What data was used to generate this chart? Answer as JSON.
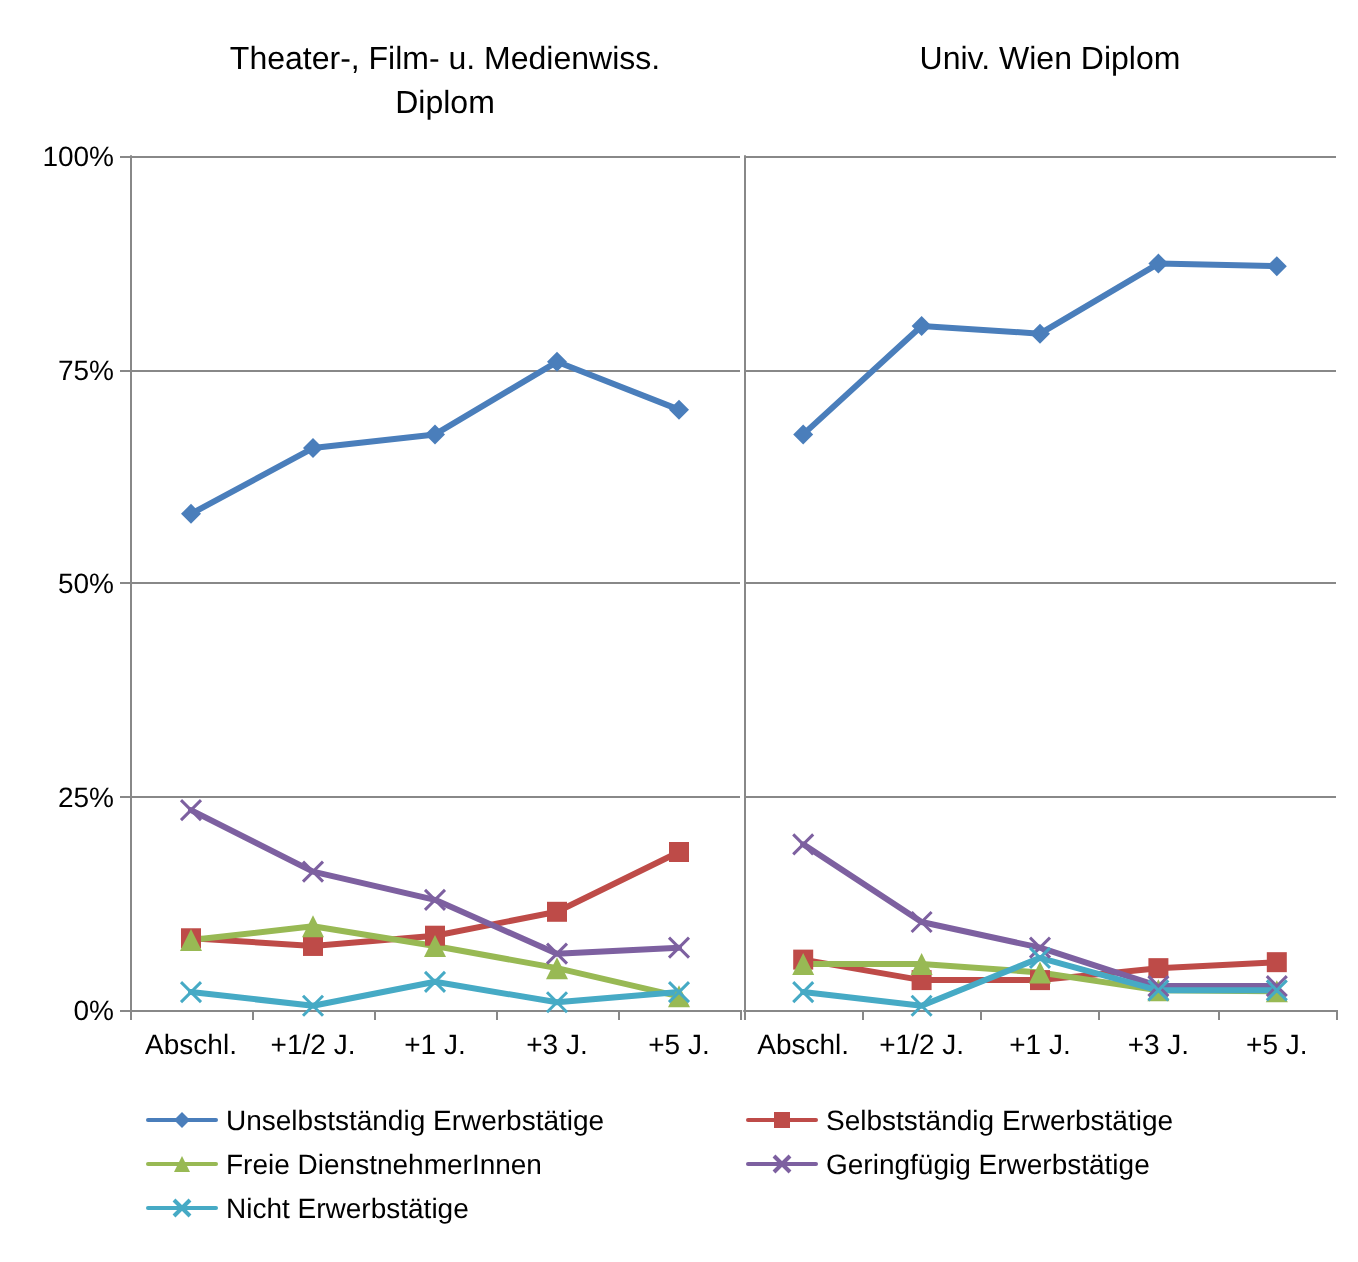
{
  "chart_data": [
    {
      "type": "line",
      "title": "Theater-, Film- u. Medienwiss.\nDiplom",
      "categories": [
        "Abschl.",
        "+1/2 J.",
        "+1 J.",
        "+3 J.",
        "+5 J."
      ],
      "series": [
        {
          "name": "Unselbstständig Erwerbstätige",
          "color": "#4a7ebb",
          "marker": "diamond",
          "values": [
            58.1,
            65.8,
            67.4,
            75.9,
            70.3
          ]
        },
        {
          "name": "Selbstständig Erwerbstätige",
          "color": "#be4b48",
          "marker": "square",
          "values": [
            8.4,
            7.5,
            8.7,
            11.5,
            18.5
          ]
        },
        {
          "name": "Freie DienstnehmerInnen",
          "color": "#98b954",
          "marker": "triangle",
          "values": [
            8.2,
            9.8,
            7.5,
            4.9,
            1.6
          ]
        },
        {
          "name": "Geringfügig Erwerbstätige",
          "color": "#7d60a0",
          "marker": "cross",
          "values": [
            23.4,
            16.2,
            12.9,
            6.6,
            7.3
          ]
        },
        {
          "name": "Nicht Erwerbstätige",
          "color": "#46aac5",
          "marker": "cross",
          "values": [
            2.1,
            0.5,
            3.3,
            0.9,
            2.1
          ]
        }
      ],
      "ylim": [
        0,
        100
      ],
      "yticks": [
        {
          "value": 0,
          "label": "0%"
        },
        {
          "value": 25,
          "label": "25%"
        },
        {
          "value": 50,
          "label": "50%"
        },
        {
          "value": 75,
          "label": "75%"
        },
        {
          "value": 100,
          "label": "100%"
        }
      ],
      "grid": "y",
      "legend": "bottom"
    },
    {
      "type": "line",
      "title": "Univ. Wien Diplom",
      "categories": [
        "Abschl.",
        "+1/2 J.",
        "+1 J.",
        "+3 J.",
        "+5 J."
      ],
      "series": [
        {
          "color": "#4a7ebb",
          "marker": "diamond",
          "values": [
            67.4,
            80.1,
            79.2,
            87.4,
            87.1
          ]
        },
        {
          "color": "#be4b48",
          "marker": "square",
          "values": [
            5.9,
            3.5,
            3.5,
            4.9,
            5.6
          ]
        },
        {
          "color": "#98b954",
          "marker": "triangle",
          "values": [
            5.4,
            5.4,
            4.4,
            2.3,
            2.2
          ]
        },
        {
          "color": "#7d60a0",
          "marker": "cross",
          "values": [
            19.4,
            10.3,
            7.3,
            2.8,
            2.8
          ]
        },
        {
          "color": "#46aac5",
          "marker": "cross",
          "values": [
            2.1,
            0.5,
            6.1,
            2.3,
            2.3
          ]
        }
      ],
      "ylim": [
        0,
        100
      ],
      "yticks": [
        {
          "value": 0,
          "label": null
        },
        {
          "value": 25,
          "label": null
        },
        {
          "value": 50,
          "label": null
        },
        {
          "value": 75,
          "label": null
        },
        {
          "value": 100,
          "label": null
        }
      ],
      "grid": "y",
      "tick_labels": "x"
    }
  ]
}
